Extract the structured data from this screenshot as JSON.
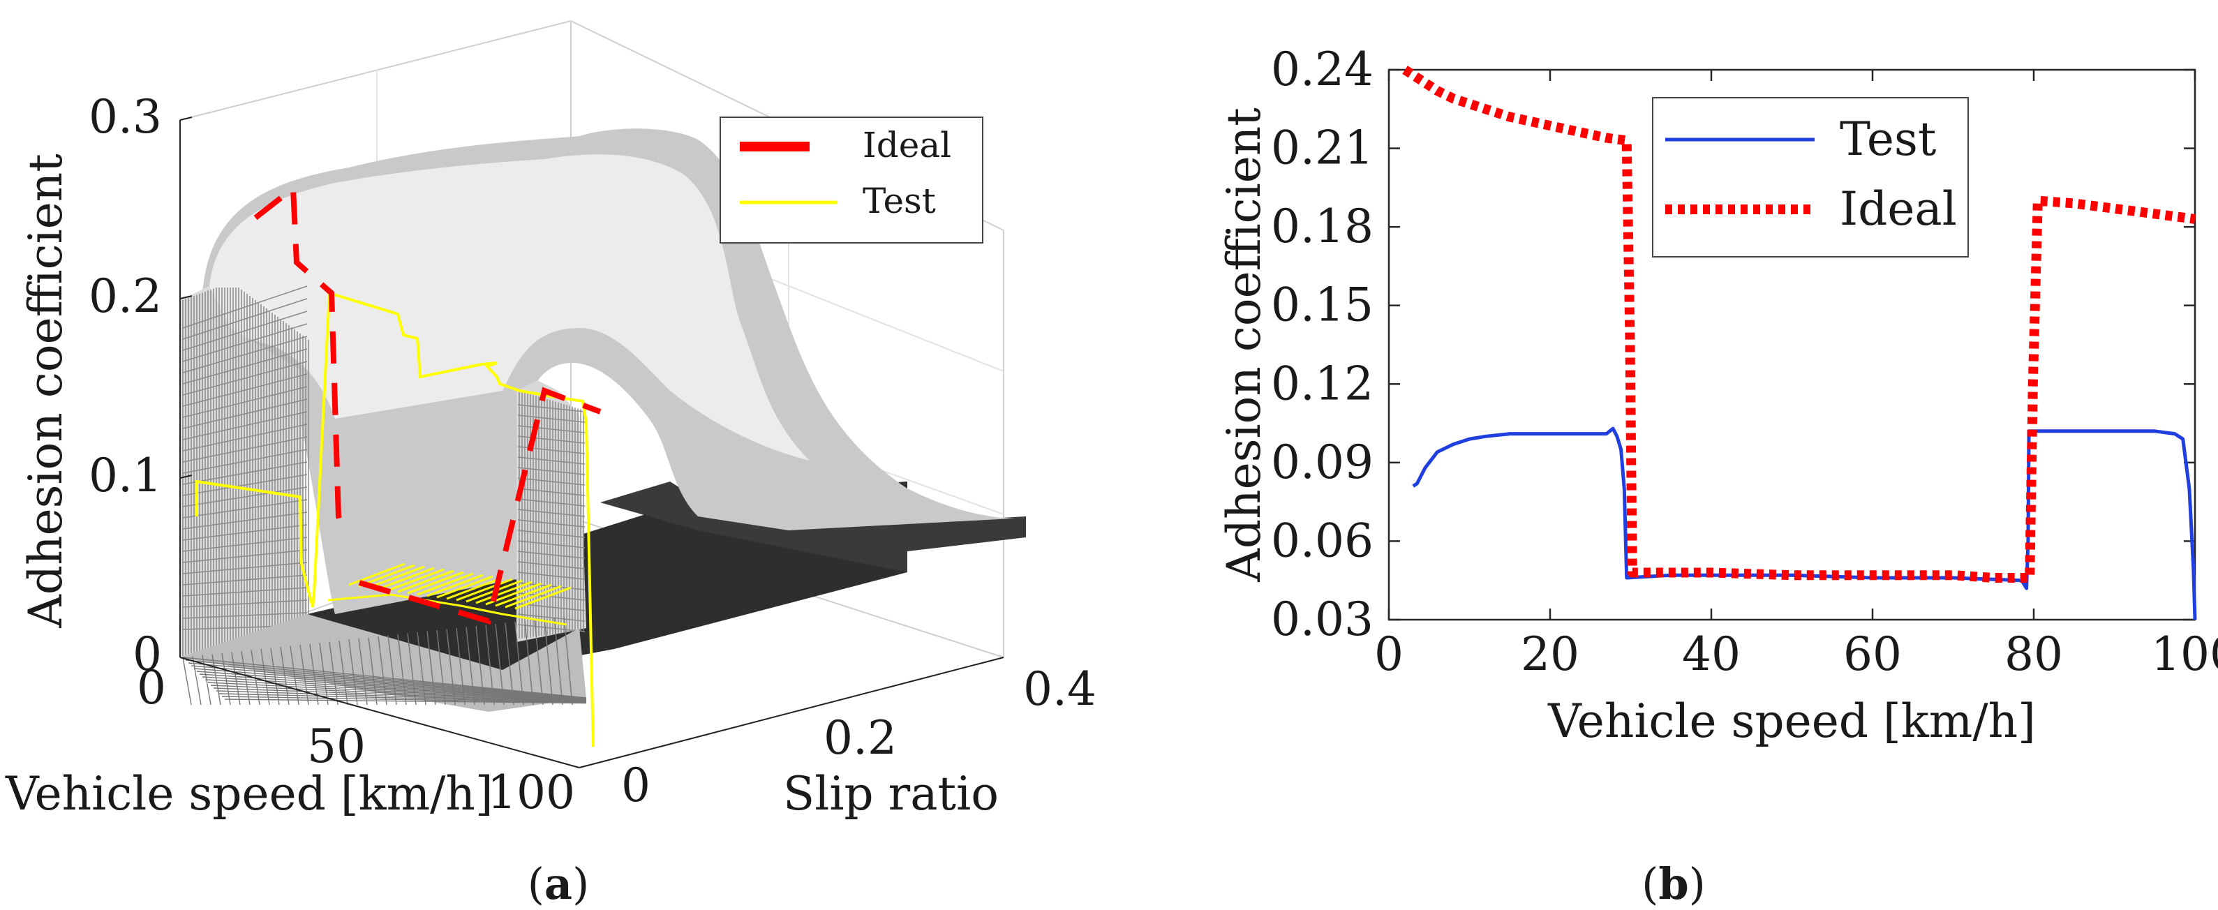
{
  "panel_a": {
    "caption": "(a)",
    "caption_letter": "a",
    "legend": [
      "Ideal",
      "Test"
    ]
  },
  "panel_b": {
    "caption": "(b)",
    "caption_letter": "b"
  },
  "colors": {
    "ideal": "#ff0000",
    "test_a": "#ffff00",
    "test_b": "#1f3fdf",
    "surface_light": "#f2f2f2",
    "surface_dark": "#2b2b2b"
  },
  "chart_data": [
    {
      "type": "surface3d",
      "xlabel": "Vehicle speed [km/h]",
      "ylabel": "Slip ratio",
      "zlabel": "Adhesion coefficient",
      "x_ticks": [
        "0",
        "50",
        "100"
      ],
      "y_ticks": [
        "0",
        "0.2",
        "0.4"
      ],
      "z_ticks": [
        "0",
        "0.1",
        "0.2",
        "0.3"
      ],
      "xlim": [
        0,
        100
      ],
      "ylim": [
        0,
        0.4
      ],
      "zlim": [
        0,
        0.3
      ],
      "legend_position": "top-right",
      "series": [
        {
          "name": "Ideal",
          "style": "dashed"
        },
        {
          "name": "Test",
          "style": "solid"
        }
      ]
    },
    {
      "type": "line",
      "xlabel": "Vehicle speed [km/h]",
      "ylabel": "Adhesion coefficient",
      "xlim": [
        0,
        100
      ],
      "ylim": [
        0.03,
        0.24
      ],
      "x_ticks": [
        "0",
        "20",
        "40",
        "60",
        "80",
        "100"
      ],
      "y_ticks": [
        "0.03",
        "0.06",
        "0.09",
        "0.12",
        "0.15",
        "0.18",
        "0.21",
        "0.24"
      ],
      "legend_position": "top-center",
      "grid": false,
      "series": [
        {
          "name": "Test",
          "style": "solid",
          "x": [
            3,
            3.5,
            4.5,
            6,
            8,
            10,
            12,
            15,
            18,
            20,
            22,
            25,
            27,
            27.8,
            28.3,
            28.8,
            29.2,
            29.5,
            35,
            40,
            50,
            60,
            70,
            78.5,
            79.1,
            79.3,
            79.4,
            80,
            85,
            90,
            95,
            97.5,
            98.5,
            99.3,
            99.8,
            100
          ],
          "y": [
            0.081,
            0.082,
            0.088,
            0.094,
            0.097,
            0.099,
            0.1,
            0.101,
            0.101,
            0.101,
            0.101,
            0.101,
            0.101,
            0.103,
            0.1,
            0.095,
            0.08,
            0.046,
            0.047,
            0.047,
            0.047,
            0.046,
            0.046,
            0.045,
            0.042,
            0.06,
            0.102,
            0.102,
            0.102,
            0.102,
            0.102,
            0.101,
            0.099,
            0.08,
            0.05,
            0.03
          ]
        },
        {
          "name": "Ideal",
          "style": "dotted",
          "x": [
            2,
            4,
            6,
            8,
            10,
            12,
            15,
            18,
            21,
            24,
            27,
            29.5,
            29.9,
            30.2,
            35,
            40,
            50,
            60,
            70,
            75,
            79.5,
            79.9,
            80.5,
            85,
            90,
            95,
            100
          ],
          "y": [
            0.24,
            0.236,
            0.232,
            0.229,
            0.227,
            0.225,
            0.222,
            0.22,
            0.218,
            0.216,
            0.214,
            0.213,
            0.14,
            0.048,
            0.048,
            0.048,
            0.047,
            0.047,
            0.047,
            0.046,
            0.046,
            0.12,
            0.19,
            0.189,
            0.187,
            0.185,
            0.183
          ]
        }
      ]
    }
  ]
}
